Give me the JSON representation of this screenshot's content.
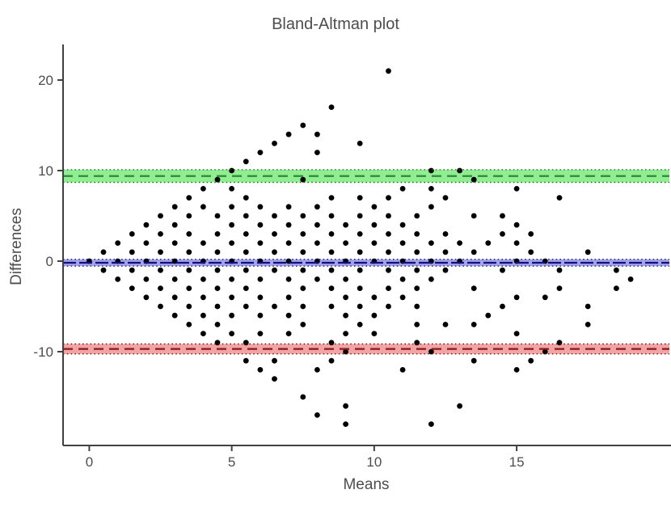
{
  "title": "Bland-Altman plot",
  "chart_data": {
    "type": "scatter",
    "title": "Bland-Altman plot",
    "xlabel": "Means",
    "ylabel": "Differences",
    "xlim": [
      -0.92,
      20.36
    ],
    "ylim": [
      -20.36,
      23.93
    ],
    "x_ticks": [
      0,
      5,
      10,
      15
    ],
    "y_ticks": [
      20,
      10,
      0,
      -10
    ],
    "grid": false,
    "legend": "none",
    "point_color": "#000000",
    "axis_color": "#404040",
    "label_color": "#4d4d4d",
    "reference_lines": [
      {
        "name": "upper-limit-of-agreement",
        "value": 9.4,
        "ci_low": 8.7,
        "ci_high": 10.1,
        "line_color": "#2b8a3e",
        "edge_color": "#20632d",
        "band_color": "#90ee90",
        "style": "dashed"
      },
      {
        "name": "mean-difference",
        "value": -0.18,
        "ci_low": -0.55,
        "ci_high": 0.2,
        "line_color": "#101080",
        "edge_color": "#101066",
        "band_color": "#a3a3e8",
        "style": "dashed"
      },
      {
        "name": "lower-limit-of-agreement",
        "value": -9.7,
        "ci_low": -10.25,
        "ci_high": -9.15,
        "line_color": "#8b1a1a",
        "edge_color": "#661010",
        "band_color": "#f2a3a3",
        "style": "dashed"
      }
    ],
    "rows": [
      {
        "diff": 21,
        "means": [
          10.5
        ]
      },
      {
        "diff": 17,
        "means": [
          8.5
        ]
      },
      {
        "diff": 15,
        "means": [
          7.5
        ]
      },
      {
        "diff": 14,
        "means": [
          7,
          8
        ]
      },
      {
        "diff": 13,
        "means": [
          6.5,
          9.5
        ]
      },
      {
        "diff": 12,
        "means": [
          6,
          8
        ]
      },
      {
        "diff": 11,
        "means": [
          5.5
        ]
      },
      {
        "diff": 10,
        "means": [
          5,
          12,
          13
        ]
      },
      {
        "diff": 9,
        "means": [
          4.5,
          7.5,
          13.5
        ]
      },
      {
        "diff": 8,
        "means": [
          4,
          5,
          11,
          12,
          15
        ]
      },
      {
        "diff": 7,
        "means": [
          3.5,
          5.5,
          8.5,
          9.5,
          10.5,
          12.5,
          16.5
        ]
      },
      {
        "diff": 6,
        "means": [
          3,
          4,
          5,
          6,
          7,
          8,
          10,
          12
        ]
      },
      {
        "diff": 5,
        "means": [
          2.5,
          3.5,
          4.5,
          5.5,
          6.5,
          7.5,
          8.5,
          9.5,
          10.5,
          11.5,
          13.5,
          14.5
        ]
      },
      {
        "diff": 4,
        "means": [
          2,
          3,
          5,
          6,
          7,
          8,
          9,
          10,
          11,
          15
        ]
      },
      {
        "diff": 3,
        "means": [
          1.5,
          2.5,
          3.5,
          4.5,
          5.5,
          6.5,
          7.5,
          8.5,
          9.5,
          10.5,
          11.5,
          12.5,
          14.5,
          15.5
        ]
      },
      {
        "diff": 2,
        "means": [
          1,
          2,
          3,
          4,
          5,
          6,
          7,
          8,
          9,
          10,
          11,
          12,
          13,
          14,
          15
        ]
      },
      {
        "diff": 1,
        "means": [
          0.5,
          1.5,
          2.5,
          3.5,
          4.5,
          5.5,
          6.5,
          7.5,
          8.5,
          9.5,
          10.5,
          11.5,
          12.5,
          13.5,
          15.5,
          17.5
        ]
      },
      {
        "diff": 0,
        "means": [
          0,
          1,
          2,
          3,
          4,
          5,
          6,
          7,
          8,
          9,
          10,
          11,
          12,
          13,
          15,
          16
        ]
      },
      {
        "diff": -1,
        "means": [
          0.5,
          1.5,
          2.5,
          3.5,
          4.5,
          5.5,
          6.5,
          7.5,
          8.5,
          9.5,
          10.5,
          11.5,
          12.5,
          14.5,
          16.5,
          18.5
        ]
      },
      {
        "diff": -2,
        "means": [
          1,
          2,
          3,
          4,
          5,
          6,
          7,
          8,
          9,
          11,
          12,
          19
        ]
      },
      {
        "diff": -3,
        "means": [
          1.5,
          2.5,
          3.5,
          4.5,
          5.5,
          7.5,
          8.5,
          9.5,
          10.5,
          11.5,
          13.5,
          16.5,
          18.5
        ]
      },
      {
        "diff": -4,
        "means": [
          2,
          3,
          4,
          5,
          6,
          7,
          9,
          10,
          11,
          15,
          16
        ]
      },
      {
        "diff": -5,
        "means": [
          2.5,
          3.5,
          4.5,
          5.5,
          6.5,
          7.5,
          8.5,
          9.5,
          10.5,
          11.5,
          14.5,
          17.5
        ]
      },
      {
        "diff": -6,
        "means": [
          3,
          4,
          5,
          6,
          7,
          9,
          10,
          14
        ]
      },
      {
        "diff": -7,
        "means": [
          3.5,
          4.5,
          7.5,
          9.5,
          11.5,
          12.5,
          13.5,
          17.5
        ]
      },
      {
        "diff": -8,
        "means": [
          4,
          5,
          6,
          7,
          9,
          10,
          15
        ]
      },
      {
        "diff": -9,
        "means": [
          4.5,
          5.5,
          8.5,
          11.5,
          16.5
        ]
      },
      {
        "diff": -10,
        "means": [
          9,
          12,
          16
        ]
      },
      {
        "diff": -11,
        "means": [
          5.5,
          6.5,
          8.5,
          13.5,
          15.5
        ]
      },
      {
        "diff": -12,
        "means": [
          6,
          8,
          11,
          15
        ]
      },
      {
        "diff": -13,
        "means": [
          6.5
        ]
      },
      {
        "diff": -15,
        "means": [
          7.5
        ]
      },
      {
        "diff": -16,
        "means": [
          9,
          13
        ]
      },
      {
        "diff": -17,
        "means": [
          8
        ]
      },
      {
        "diff": -18,
        "means": [
          9,
          12
        ]
      }
    ]
  }
}
